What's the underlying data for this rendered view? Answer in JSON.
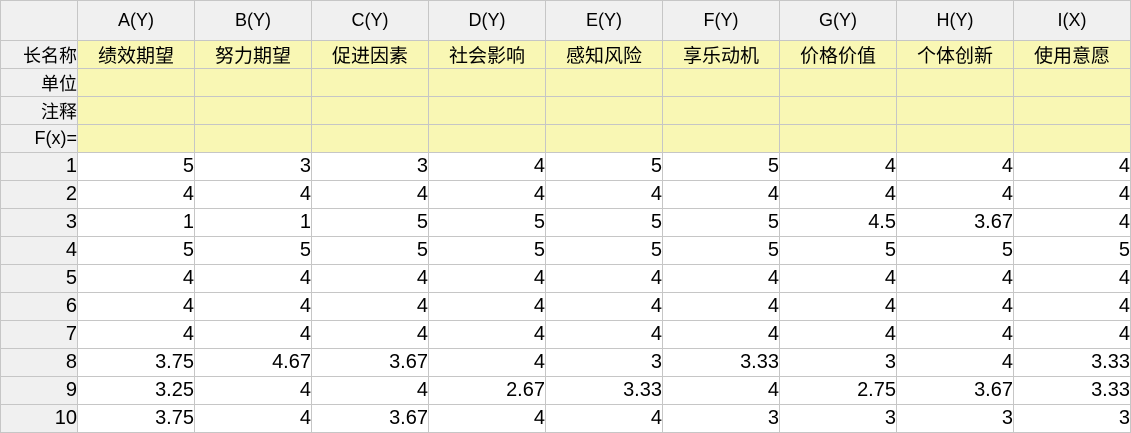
{
  "columns": [
    {
      "header": "A(Y)",
      "long_name": "绩效期望"
    },
    {
      "header": "B(Y)",
      "long_name": "努力期望"
    },
    {
      "header": "C(Y)",
      "long_name": "促进因素"
    },
    {
      "header": "D(Y)",
      "long_name": "社会影响"
    },
    {
      "header": "E(Y)",
      "long_name": "感知风险"
    },
    {
      "header": "F(Y)",
      "long_name": "享乐动机"
    },
    {
      "header": "G(Y)",
      "long_name": "价格价值"
    },
    {
      "header": "H(Y)",
      "long_name": "个体创新"
    },
    {
      "header": "I(X)",
      "long_name": "使用意愿"
    }
  ],
  "meta_rows": {
    "long_name_label": "长名称",
    "unit_label": "单位",
    "comment_label": "注释",
    "fx_label": "F(x)="
  },
  "rows": [
    {
      "label": "1",
      "values": [
        "5",
        "3",
        "3",
        "4",
        "5",
        "5",
        "4",
        "4",
        "4"
      ]
    },
    {
      "label": "2",
      "values": [
        "4",
        "4",
        "4",
        "4",
        "4",
        "4",
        "4",
        "4",
        "4"
      ]
    },
    {
      "label": "3",
      "values": [
        "1",
        "1",
        "5",
        "5",
        "5",
        "5",
        "4.5",
        "3.67",
        "4"
      ]
    },
    {
      "label": "4",
      "values": [
        "5",
        "5",
        "5",
        "5",
        "5",
        "5",
        "5",
        "5",
        "5"
      ]
    },
    {
      "label": "5",
      "values": [
        "4",
        "4",
        "4",
        "4",
        "4",
        "4",
        "4",
        "4",
        "4"
      ]
    },
    {
      "label": "6",
      "values": [
        "4",
        "4",
        "4",
        "4",
        "4",
        "4",
        "4",
        "4",
        "4"
      ]
    },
    {
      "label": "7",
      "values": [
        "4",
        "4",
        "4",
        "4",
        "4",
        "4",
        "4",
        "4",
        "4"
      ]
    },
    {
      "label": "8",
      "values": [
        "3.75",
        "4.67",
        "3.67",
        "4",
        "3",
        "3.33",
        "3",
        "4",
        "3.33"
      ]
    },
    {
      "label": "9",
      "values": [
        "3.25",
        "4",
        "4",
        "2.67",
        "3.33",
        "4",
        "2.75",
        "3.67",
        "3.33"
      ]
    },
    {
      "label": "10",
      "values": [
        "3.75",
        "4",
        "3.67",
        "4",
        "4",
        "3",
        "3",
        "3",
        "3"
      ]
    }
  ]
}
